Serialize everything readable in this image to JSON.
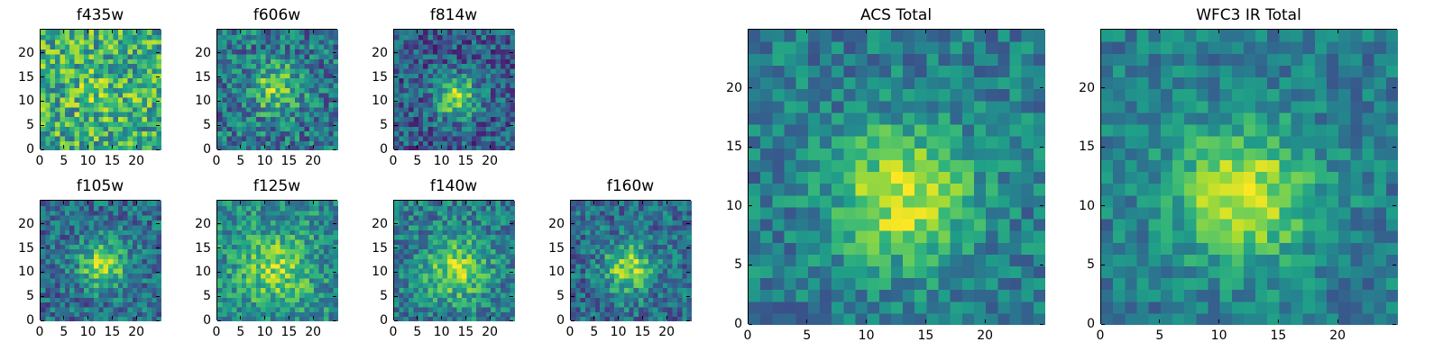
{
  "figure": {
    "background": "#ffffff",
    "colormap": "viridis"
  },
  "chart_data": [
    {
      "type": "heatmap",
      "title": "f435w",
      "xlim": [
        0,
        25
      ],
      "ylim": [
        0,
        25
      ],
      "xticks": [
        0,
        5,
        10,
        15,
        20
      ],
      "yticks": [
        0,
        5,
        10,
        15,
        20
      ],
      "xlabel": "",
      "ylabel": "",
      "profile": {
        "center": [
          12,
          12
        ],
        "peak": 0.1,
        "sigma": 4.0,
        "base": 0.62,
        "noise": 0.3,
        "seed": 11
      }
    },
    {
      "type": "heatmap",
      "title": "f606w",
      "xlim": [
        0,
        25
      ],
      "ylim": [
        0,
        25
      ],
      "xticks": [
        0,
        5,
        10,
        15,
        20
      ],
      "yticks": [
        0,
        5,
        10,
        15,
        20
      ],
      "xlabel": "",
      "ylabel": "",
      "profile": {
        "center": [
          12,
          13
        ],
        "peak": 0.4,
        "sigma": 3.5,
        "base": 0.4,
        "noise": 0.26,
        "seed": 23
      }
    },
    {
      "type": "heatmap",
      "title": "f814w",
      "xlim": [
        0,
        25
      ],
      "ylim": [
        0,
        25
      ],
      "xticks": [
        0,
        5,
        10,
        15,
        20
      ],
      "yticks": [
        0,
        5,
        10,
        15,
        20
      ],
      "xlabel": "",
      "ylabel": "",
      "profile": {
        "center": [
          13,
          11
        ],
        "peak": 0.55,
        "sigma": 3.0,
        "base": 0.3,
        "noise": 0.24,
        "seed": 37
      }
    },
    {
      "type": "heatmap",
      "title": "f105w",
      "xlim": [
        0,
        25
      ],
      "ylim": [
        0,
        25
      ],
      "xticks": [
        0,
        5,
        10,
        15,
        20
      ],
      "yticks": [
        0,
        5,
        10,
        15,
        20
      ],
      "xlabel": "",
      "ylabel": "",
      "profile": {
        "center": [
          13,
          12
        ],
        "peak": 0.5,
        "sigma": 3.5,
        "base": 0.36,
        "noise": 0.22,
        "seed": 41
      }
    },
    {
      "type": "heatmap",
      "title": "f125w",
      "xlim": [
        0,
        25
      ],
      "ylim": [
        0,
        25
      ],
      "xticks": [
        0,
        5,
        10,
        15,
        20
      ],
      "yticks": [
        0,
        5,
        10,
        15,
        20
      ],
      "xlabel": "",
      "ylabel": "",
      "profile": {
        "center": [
          12,
          11
        ],
        "peak": 0.35,
        "sigma": 5.0,
        "base": 0.48,
        "noise": 0.22,
        "seed": 53
      }
    },
    {
      "type": "heatmap",
      "title": "f140w",
      "xlim": [
        0,
        25
      ],
      "ylim": [
        0,
        25
      ],
      "xticks": [
        0,
        5,
        10,
        15,
        20
      ],
      "yticks": [
        0,
        5,
        10,
        15,
        20
      ],
      "xlabel": "",
      "ylabel": "",
      "profile": {
        "center": [
          13,
          11
        ],
        "peak": 0.42,
        "sigma": 4.5,
        "base": 0.42,
        "noise": 0.22,
        "seed": 67
      }
    },
    {
      "type": "heatmap",
      "title": "f160w",
      "xlim": [
        0,
        25
      ],
      "ylim": [
        0,
        25
      ],
      "xticks": [
        0,
        5,
        10,
        15,
        20
      ],
      "yticks": [
        0,
        5,
        10,
        15,
        20
      ],
      "xlabel": "",
      "ylabel": "",
      "profile": {
        "center": [
          12,
          11
        ],
        "peak": 0.5,
        "sigma": 3.5,
        "base": 0.36,
        "noise": 0.22,
        "seed": 79
      }
    },
    {
      "type": "heatmap",
      "title": "ACS Total",
      "xlim": [
        0,
        25
      ],
      "ylim": [
        0,
        25
      ],
      "xticks": [
        0,
        5,
        10,
        15,
        20
      ],
      "yticks": [
        0,
        5,
        10,
        15,
        20
      ],
      "xlabel": "",
      "ylabel": "",
      "profile": {
        "center": [
          13,
          11
        ],
        "peak": 0.5,
        "sigma": 4.0,
        "base": 0.42,
        "noise": 0.18,
        "seed": 97
      }
    },
    {
      "type": "heatmap",
      "title": "WFC3 IR Total",
      "xlim": [
        0,
        25
      ],
      "ylim": [
        0,
        25
      ],
      "xticks": [
        0,
        5,
        10,
        15,
        20
      ],
      "yticks": [
        0,
        5,
        10,
        15,
        20
      ],
      "xlabel": "",
      "ylabel": "",
      "profile": {
        "center": [
          12,
          11
        ],
        "peak": 0.52,
        "sigma": 4.0,
        "base": 0.42,
        "noise": 0.16,
        "seed": 131
      }
    }
  ]
}
